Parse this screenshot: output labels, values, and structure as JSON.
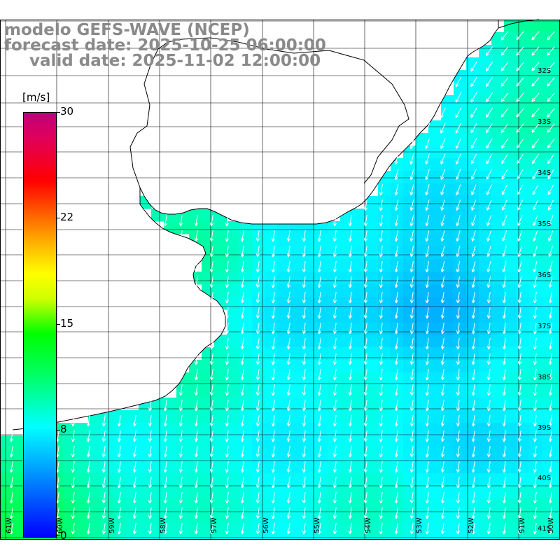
{
  "titles": {
    "line1": "modelo GEFS-WAVE (NCEP)",
    "line2": "forecast date: 2025-10-25 06:00:00",
    "line3": "valid date: 2025-11-02 12:00:00"
  },
  "colorbar": {
    "unit": "[m/s]",
    "labels": [
      "30",
      "22",
      "15",
      "8",
      "0"
    ],
    "min": 0,
    "max": 30,
    "colors": [
      "#0000ff",
      "#00aaff",
      "#00ffff",
      "#00ff66",
      "#00ff00",
      "#ffff00",
      "#ff5500",
      "#ff0000",
      "#c0007a"
    ]
  },
  "lat_labels": [
    "32S",
    "33S",
    "34S",
    "35S",
    "36S",
    "37S",
    "38S",
    "39S",
    "40S",
    "41S"
  ],
  "lon_labels": [
    "61W",
    "60W",
    "59W",
    "58W",
    "57W",
    "56W",
    "55W",
    "54W",
    "53W",
    "52W",
    "51W",
    "50W"
  ],
  "land_color": "#ffffff",
  "arrow_color": "#ffffff",
  "grid_color": "#000000"
}
